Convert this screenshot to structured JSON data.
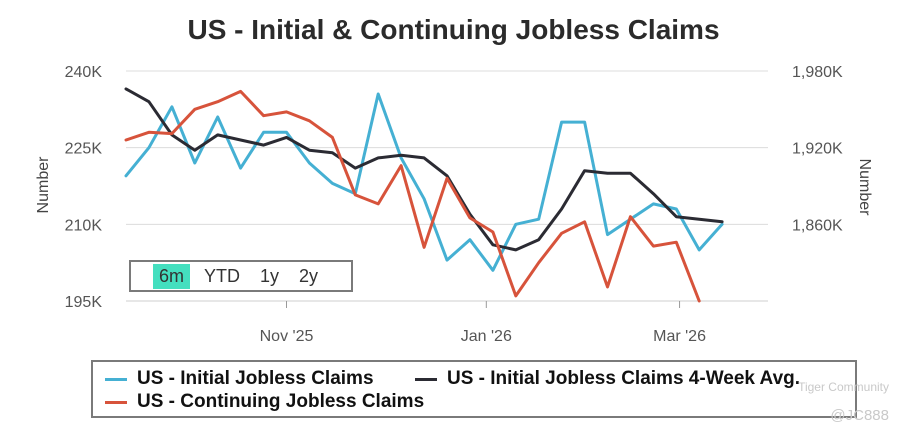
{
  "chart_data": {
    "type": "line",
    "title": "US - Initial & Continuing Jobless Claims",
    "ylabel_left": "Number",
    "ylabel_right": "Number",
    "y_left_ticks": [
      "240K",
      "225K",
      "210K",
      "195K"
    ],
    "y_left_range": [
      195000,
      240000
    ],
    "y_right_ticks": [
      "1,980K",
      "1,920K",
      "1,860K"
    ],
    "y_right_range": [
      1800000,
      1980000
    ],
    "x_ticks": [
      "Nov '25",
      "Jan '26",
      "Mar '26"
    ],
    "grid": "horizontal",
    "x_dates": [
      "2025-09-13",
      "2025-09-20",
      "2025-09-27",
      "2025-10-04",
      "2025-10-11",
      "2025-10-18",
      "2025-10-25",
      "2025-11-01",
      "2025-11-08",
      "2025-11-15",
      "2025-11-22",
      "2025-11-29",
      "2025-12-06",
      "2025-12-13",
      "2025-12-20",
      "2025-12-27",
      "2026-01-03",
      "2026-01-10",
      "2026-01-17",
      "2026-01-24",
      "2026-01-31",
      "2026-02-07",
      "2026-02-14",
      "2026-02-21",
      "2026-02-28",
      "2026-03-07",
      "2026-03-14",
      "2026-03-21",
      "2026-03-28"
    ],
    "series": [
      {
        "name": "US - Initial Jobless Claims",
        "axis": "left",
        "color": "#45b0d3",
        "values": [
          219500,
          225000,
          233000,
          222000,
          231000,
          221000,
          228000,
          228000,
          222000,
          218000,
          216000,
          235500,
          223000,
          215000,
          203000,
          207000,
          201000,
          210000,
          211000,
          230000,
          230000,
          208000,
          211000,
          214000,
          213000,
          205000,
          210000
        ]
      },
      {
        "name": "US - Initial Jobless Claims 4-Week Avg.",
        "axis": "left",
        "color": "#2b2b33",
        "values": [
          236500,
          234000,
          227500,
          224500,
          227500,
          226500,
          225500,
          227000,
          224500,
          224000,
          221000,
          223000,
          223500,
          223000,
          219500,
          212000,
          206000,
          205000,
          207000,
          213000,
          220500,
          220000,
          220000,
          216000,
          211500,
          211000,
          210500
        ]
      },
      {
        "name": "US - Continuing Jobless Claims",
        "axis": "right",
        "color": "#d7533b",
        "values": [
          1926000,
          1932000,
          1931000,
          1950000,
          1956000,
          1964000,
          1945000,
          1948000,
          1941000,
          1928000,
          1883000,
          1876000,
          1906000,
          1842000,
          1896000,
          1865000,
          1854000,
          1804000,
          1830000,
          1853000,
          1862000,
          1811000,
          1866000,
          1843000,
          1846000,
          1800000
        ]
      }
    ]
  },
  "range_selector": {
    "buttons": [
      "6m",
      "YTD",
      "1y",
      "2y"
    ],
    "active": "6m"
  },
  "legend": {
    "items": [
      {
        "label": "US - Initial Jobless Claims",
        "color": "#45b0d3"
      },
      {
        "label": "US - Initial Jobless Claims 4-Week Avg.",
        "color": "#2b2b33"
      },
      {
        "label": "US - Continuing Jobless Claims",
        "color": "#d7533b"
      }
    ]
  },
  "watermark": {
    "line1": "Tiger Community",
    "line2": "@JC888"
  }
}
